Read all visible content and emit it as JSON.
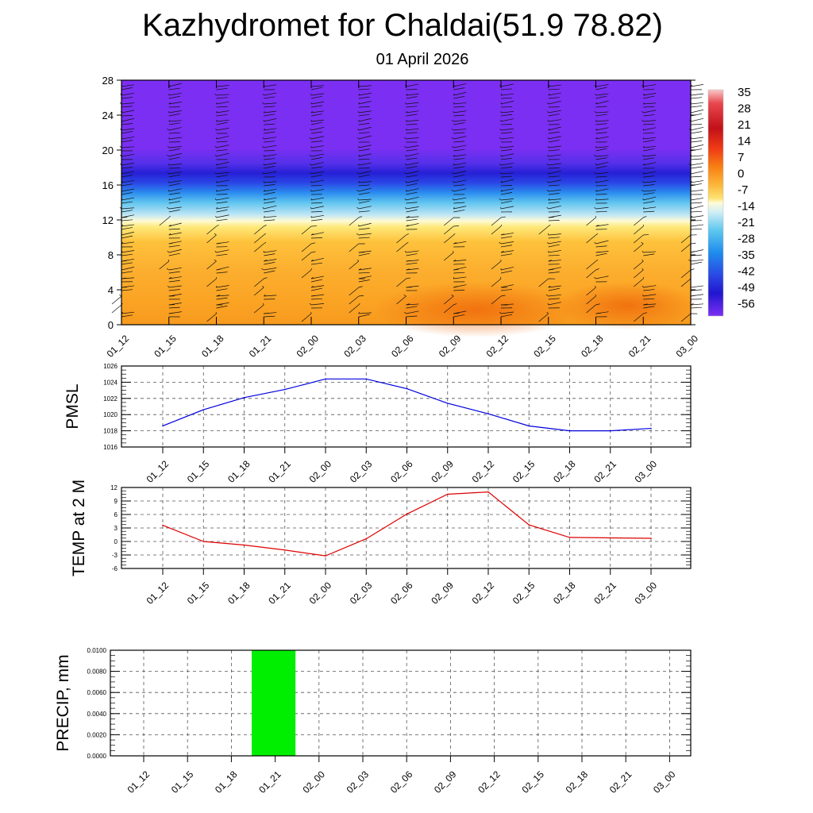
{
  "title": "Kazhydromet for Chaldai(51.9 78.82)",
  "subtitle": "01 April 2026",
  "time_labels": [
    "01_12",
    "01_15",
    "01_18",
    "01_21",
    "02_00",
    "02_03",
    "02_06",
    "02_09",
    "02_12",
    "02_15",
    "02_18",
    "02_21",
    "03_00"
  ],
  "colors": {
    "pmsl_line": "#0000dd",
    "temp_line": "#dd0000",
    "precip_bar": "#00ee00"
  },
  "chart_data": [
    {
      "id": "temperature-profile",
      "type": "heatmap",
      "title": "",
      "xlabel": "",
      "ylabel": "",
      "y_ticks": [
        0,
        4,
        8,
        12,
        16,
        20,
        24,
        28
      ],
      "ylim": [
        0,
        28
      ],
      "colorbar_labels": [
        "35",
        "28",
        "21",
        "14",
        "7",
        "0",
        "-7",
        "-14",
        "-21",
        "-28",
        "-35",
        "-42",
        "-49",
        "-56"
      ],
      "overlay": "wind barbs",
      "note": "Warm (orange) below ~12, cold (blue/purple) above ~14; coldest band near 18"
    },
    {
      "id": "pmsl",
      "type": "line",
      "ylabel": "PMSL",
      "categories": [
        "01_12",
        "01_15",
        "01_18",
        "01_21",
        "02_00",
        "02_03",
        "02_06",
        "02_09",
        "02_12",
        "02_15",
        "02_18",
        "02_21",
        "03_00"
      ],
      "values": [
        1018.6,
        1020.6,
        1022.1,
        1023.1,
        1024.4,
        1024.4,
        1023.2,
        1021.4,
        1020.1,
        1018.6,
        1018.0,
        1018.0,
        1018.3
      ],
      "ylim": [
        1016,
        1026
      ],
      "y_ticks": [
        1016,
        1018,
        1020,
        1022,
        1024,
        1026
      ],
      "grid": true
    },
    {
      "id": "temp2m",
      "type": "line",
      "ylabel": "TEMP at 2 M",
      "categories": [
        "01_12",
        "01_15",
        "01_18",
        "01_21",
        "02_00",
        "02_03",
        "02_06",
        "02_09",
        "02_12",
        "02_15",
        "02_18",
        "02_21",
        "03_00"
      ],
      "values": [
        3.6,
        0.0,
        -0.8,
        -1.9,
        -3.2,
        0.6,
        6.1,
        10.5,
        11.0,
        3.7,
        0.9,
        0.8,
        0.7
      ],
      "ylim": [
        -6,
        12
      ],
      "y_ticks": [
        -6,
        -3,
        0,
        3,
        6,
        9,
        12
      ],
      "grid": true
    },
    {
      "id": "precip",
      "type": "bar",
      "ylabel": "PRECIP, mm",
      "categories": [
        "01_12",
        "01_15",
        "01_18",
        "01_21",
        "02_00",
        "02_03",
        "02_06",
        "02_09",
        "02_12",
        "02_15",
        "02_18",
        "02_21",
        "03_00"
      ],
      "values": [
        0,
        0,
        0,
        0.01,
        0,
        0,
        0,
        0,
        0,
        0,
        0,
        0,
        0
      ],
      "ylim": [
        0,
        0.01
      ],
      "y_ticks": [
        "0.0000",
        "0.0020",
        "0.0040",
        "0.0060",
        "0.0080",
        "0.0100"
      ],
      "grid": true
    }
  ]
}
